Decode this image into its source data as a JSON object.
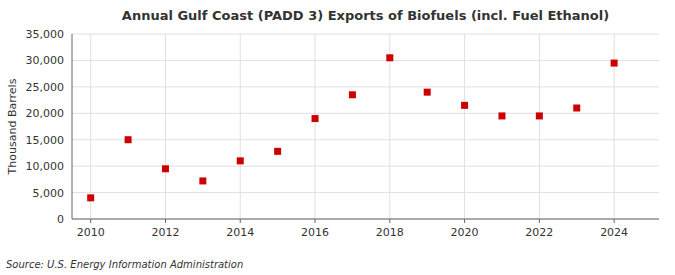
{
  "chart_data": {
    "type": "scatter",
    "title": "Annual Gulf Coast (PADD 3) Exports of Biofuels (incl. Fuel Ethanol)",
    "ylabel": "Thousand Barrels",
    "source": "Source: U.S. Energy Information Administration",
    "x": [
      2010,
      2011,
      2012,
      2013,
      2014,
      2015,
      2016,
      2017,
      2018,
      2019,
      2020,
      2021,
      2022,
      2023,
      2024
    ],
    "values": [
      4000,
      15000,
      9500,
      7200,
      11000,
      12800,
      19000,
      23500,
      30500,
      24000,
      21500,
      19500,
      19500,
      21000,
      29500
    ],
    "color": "#cc0000",
    "marker": "square",
    "xlim": [
      2009.5,
      2025.2
    ],
    "xticks": [
      2010,
      2012,
      2014,
      2016,
      2018,
      2020,
      2022,
      2024
    ],
    "ylim": [
      0,
      35000
    ],
    "yticks": [
      0,
      {
        "value": 5000,
        "label": "5,000"
      },
      {
        "value": 10000,
        "label": "10,000"
      },
      {
        "value": 15000,
        "label": "15,000"
      },
      {
        "value": 20000,
        "label": "20,000"
      },
      {
        "value": 25000,
        "label": "25,000"
      },
      {
        "value": 30000,
        "label": "30,000"
      },
      {
        "value": 35000,
        "label": "35,000"
      }
    ],
    "grid": true
  }
}
